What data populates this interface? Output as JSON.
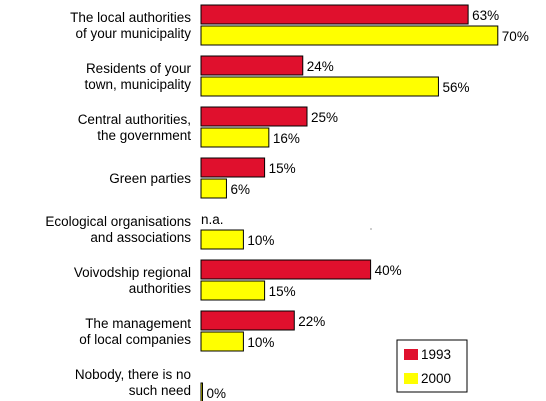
{
  "chart_data": {
    "type": "bar",
    "orientation": "horizontal",
    "categories": [
      [
        "The local authorities",
        "of your municipality"
      ],
      [
        "Residents of your",
        "town, municipality"
      ],
      [
        "Central authorities,",
        "the government"
      ],
      [
        "Green parties"
      ],
      [
        "Ecological organisations",
        "and associations"
      ],
      [
        "Voivodship regional",
        "authorities"
      ],
      [
        "The management",
        "of local companies"
      ],
      [
        "Nobody, there is no",
        "such need"
      ]
    ],
    "series": [
      {
        "name": "1993",
        "color": "#e0102d",
        "values": [
          63,
          24,
          25,
          15,
          null,
          40,
          22,
          null
        ],
        "labels": [
          "63%",
          "24%",
          "25%",
          "15%",
          "n.a.",
          "40%",
          "22%",
          ""
        ]
      },
      {
        "name": "2000",
        "color": "#ffff00",
        "values": [
          70,
          56,
          16,
          6,
          10,
          15,
          10,
          0
        ],
        "labels": [
          "70%",
          "56%",
          "16%",
          "6%",
          "10%",
          "15%",
          "10%",
          "0%"
        ]
      }
    ],
    "xlim": [
      0,
      70
    ],
    "grid": false,
    "legend_position": "bottom-right"
  }
}
